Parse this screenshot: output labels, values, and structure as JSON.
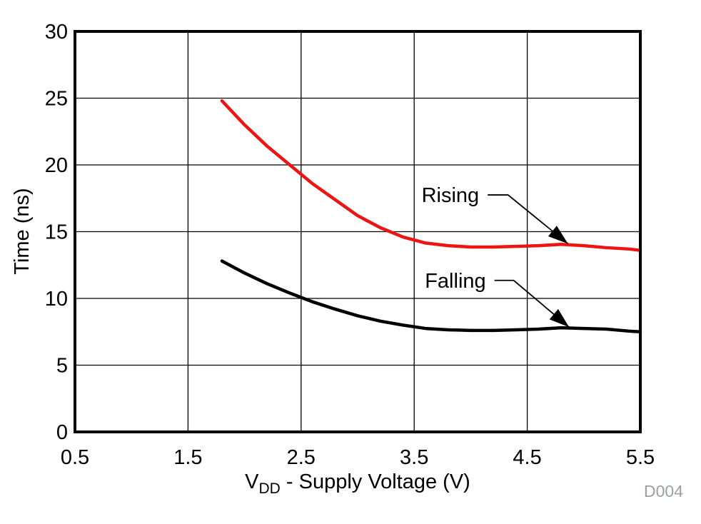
{
  "chart_data": {
    "type": "line",
    "title": "",
    "xlabel": {
      "prefix": "V",
      "subscript": "DD",
      "suffix": " - Supply Voltage (V)"
    },
    "ylabel": "Time (ns)",
    "xlim": [
      0.5,
      5.5
    ],
    "ylim": [
      0,
      30
    ],
    "xticks": [
      "0.5",
      "1.5",
      "2.5",
      "3.5",
      "4.5",
      "5.5"
    ],
    "yticks": [
      "0",
      "5",
      "10",
      "15",
      "20",
      "25",
      "30"
    ],
    "grid": true,
    "legend_position": "inline-annotations",
    "watermark": "D004",
    "series": [
      {
        "name": "Rising",
        "color": "#ED1414",
        "points": [
          [
            1.8,
            24.8
          ],
          [
            2.0,
            23.0
          ],
          [
            2.2,
            21.4
          ],
          [
            2.4,
            20.0
          ],
          [
            2.6,
            18.6
          ],
          [
            2.8,
            17.4
          ],
          [
            3.0,
            16.2
          ],
          [
            3.2,
            15.3
          ],
          [
            3.4,
            14.6
          ],
          [
            3.6,
            14.15
          ],
          [
            3.8,
            13.95
          ],
          [
            4.0,
            13.85
          ],
          [
            4.2,
            13.85
          ],
          [
            4.4,
            13.9
          ],
          [
            4.6,
            13.95
          ],
          [
            4.8,
            14.05
          ],
          [
            5.0,
            13.95
          ],
          [
            5.2,
            13.8
          ],
          [
            5.4,
            13.7
          ],
          [
            5.5,
            13.6
          ]
        ]
      },
      {
        "name": "Falling",
        "color": "#000000",
        "points": [
          [
            1.8,
            12.8
          ],
          [
            2.0,
            11.9
          ],
          [
            2.2,
            11.1
          ],
          [
            2.4,
            10.4
          ],
          [
            2.6,
            9.75
          ],
          [
            2.8,
            9.2
          ],
          [
            3.0,
            8.7
          ],
          [
            3.2,
            8.3
          ],
          [
            3.4,
            8.0
          ],
          [
            3.6,
            7.75
          ],
          [
            3.8,
            7.65
          ],
          [
            4.0,
            7.6
          ],
          [
            4.2,
            7.6
          ],
          [
            4.4,
            7.65
          ],
          [
            4.6,
            7.7
          ],
          [
            4.8,
            7.8
          ],
          [
            5.0,
            7.75
          ],
          [
            5.2,
            7.7
          ],
          [
            5.4,
            7.55
          ],
          [
            5.5,
            7.5
          ]
        ]
      }
    ],
    "annotations": [
      {
        "label": "Rising",
        "start": [
          4.15,
          17.75
        ],
        "elbow": [
          4.33,
          17.75
        ],
        "tip": [
          4.86,
          14.1
        ]
      },
      {
        "label": "Falling",
        "start": [
          4.21,
          11.35
        ],
        "elbow": [
          4.38,
          11.35
        ],
        "tip": [
          4.87,
          7.85
        ]
      }
    ]
  }
}
